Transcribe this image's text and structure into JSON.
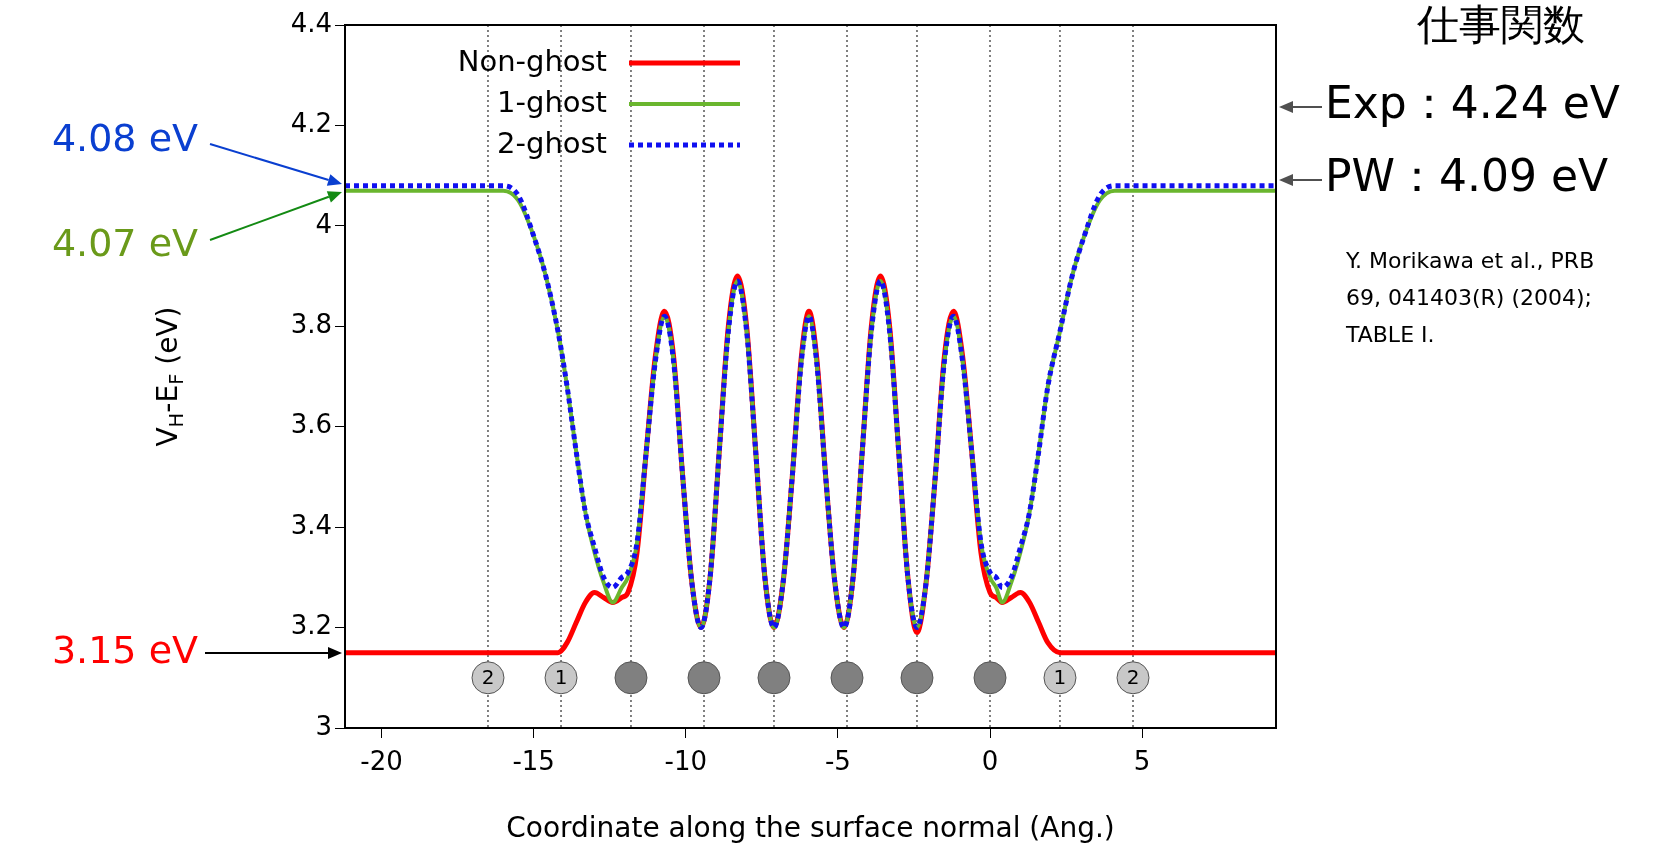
{
  "chart_data": {
    "type": "line",
    "title": "仕事関数",
    "xlabel": "Coordinate along the surface normal (Ang.)",
    "ylabel": "V$_{H}$-E$_{F}$ (eV)",
    "xlim": [
      -21.2,
      9.4
    ],
    "ylim": [
      3,
      4.4
    ],
    "xticks": [
      -20,
      -15,
      -10,
      -5,
      0,
      5
    ],
    "yticks": [
      3,
      3.2,
      3.4,
      3.6,
      3.8,
      4,
      4.2,
      4.4
    ],
    "legend": "top left",
    "marker": "none",
    "x": [
      -21.2,
      -16,
      -15.5,
      -15,
      -14.6,
      -14.2,
      -13.9,
      -13.6,
      -13.3,
      -13.0,
      -12.7,
      -12.4,
      -12.1,
      -11.9,
      -11.6,
      -11.3,
      -11.0,
      -10.7,
      -10.4,
      -10.1,
      -9.8,
      -9.5,
      -9.2,
      -8.9,
      -8.6,
      -8.3,
      -8.0,
      -7.7,
      -7.4,
      -7.1,
      -6.8,
      -6.5,
      -6.2,
      -5.95,
      -5.7,
      -5.4,
      -5.1,
      -4.8,
      -4.5,
      -4.2,
      -3.9,
      -3.6,
      -3.3,
      -3.0,
      -2.7,
      -2.4,
      -2.1,
      -1.8,
      -1.5,
      -1.2,
      -0.9,
      -0.6,
      -0.3,
      0,
      0.2,
      0.4,
      0.7,
      1.0,
      1.3,
      1.6,
      1.9,
      2.3,
      2.7,
      3.1,
      3.6,
      4.1,
      9.4
    ],
    "series": [
      {
        "name": "Non-ghost",
        "type": "line",
        "color": "#ff0000",
        "line_style": "solid",
        "values": [
          3.15,
          3.15,
          3.15,
          3.15,
          3.15,
          3.15,
          3.17,
          3.21,
          3.25,
          3.27,
          3.26,
          3.25,
          3.26,
          3.27,
          3.35,
          3.55,
          3.74,
          3.83,
          3.74,
          3.5,
          3.29,
          3.2,
          3.3,
          3.55,
          3.8,
          3.9,
          3.8,
          3.55,
          3.3,
          3.2,
          3.29,
          3.5,
          3.74,
          3.83,
          3.74,
          3.5,
          3.29,
          3.2,
          3.3,
          3.55,
          3.8,
          3.9,
          3.8,
          3.55,
          3.3,
          3.19,
          3.29,
          3.5,
          3.74,
          3.83,
          3.74,
          3.55,
          3.35,
          3.27,
          3.26,
          3.25,
          3.26,
          3.27,
          3.25,
          3.21,
          3.17,
          3.15,
          3.15,
          3.15,
          3.15,
          3.15,
          3.15
        ]
      },
      {
        "name": "1-ghost",
        "type": "line",
        "color": "#6ab62e",
        "line_style": "solid",
        "values": [
          4.07,
          4.07,
          4.05,
          3.98,
          3.9,
          3.79,
          3.68,
          3.55,
          3.43,
          3.35,
          3.29,
          3.25,
          3.28,
          3.3,
          3.37,
          3.55,
          3.73,
          3.82,
          3.73,
          3.5,
          3.29,
          3.2,
          3.3,
          3.55,
          3.79,
          3.89,
          3.79,
          3.55,
          3.3,
          3.2,
          3.29,
          3.5,
          3.73,
          3.82,
          3.73,
          3.5,
          3.29,
          3.2,
          3.3,
          3.55,
          3.79,
          3.89,
          3.79,
          3.55,
          3.3,
          3.2,
          3.29,
          3.5,
          3.73,
          3.82,
          3.73,
          3.55,
          3.37,
          3.3,
          3.28,
          3.25,
          3.29,
          3.35,
          3.43,
          3.55,
          3.68,
          3.79,
          3.9,
          3.98,
          4.05,
          4.07,
          4.07
        ]
      },
      {
        "name": "2-ghost",
        "type": "line",
        "color": "#1010f0",
        "line_style": "dotted",
        "values": [
          4.08,
          4.08,
          4.06,
          3.98,
          3.9,
          3.79,
          3.68,
          3.55,
          3.43,
          3.36,
          3.3,
          3.28,
          3.3,
          3.31,
          3.37,
          3.55,
          3.73,
          3.82,
          3.73,
          3.5,
          3.29,
          3.2,
          3.3,
          3.55,
          3.79,
          3.89,
          3.79,
          3.55,
          3.3,
          3.2,
          3.29,
          3.5,
          3.73,
          3.82,
          3.73,
          3.5,
          3.29,
          3.2,
          3.3,
          3.55,
          3.79,
          3.89,
          3.79,
          3.55,
          3.3,
          3.2,
          3.29,
          3.5,
          3.73,
          3.82,
          3.73,
          3.55,
          3.37,
          3.31,
          3.3,
          3.28,
          3.3,
          3.36,
          3.43,
          3.55,
          3.68,
          3.79,
          3.9,
          3.98,
          4.06,
          4.08,
          4.08
        ]
      },
      {
        "type": "scatter",
        "marker": "circle",
        "x": [
          -16.5,
          -14.1,
          -11.8,
          -9.4,
          -7.1,
          -4.7,
          -2.4,
          0,
          2.3,
          4.7
        ],
        "values": [
          3.1,
          3.1,
          3.1,
          3.1,
          3.1,
          3.1,
          3.1,
          3.1,
          3.1,
          3.1
        ],
        "colors": [
          "#c8c8c8",
          "#c8c8c8",
          "#808080",
          "#808080",
          "#808080",
          "#808080",
          "#808080",
          "#808080",
          "#c8c8c8",
          "#c8c8c8"
        ]
      }
    ],
    "ref_lines": [
      {
        "axis": "x",
        "value": -16.5,
        "line_style": "dotted"
      },
      {
        "axis": "x",
        "value": -14.1,
        "line_style": "dotted"
      },
      {
        "axis": "x",
        "value": -11.8,
        "line_style": "dotted"
      },
      {
        "axis": "x",
        "value": -9.4,
        "line_style": "dotted"
      },
      {
        "axis": "x",
        "value": -7.1,
        "line_style": "dotted"
      },
      {
        "axis": "x",
        "value": -4.7,
        "line_style": "dotted"
      },
      {
        "axis": "x",
        "value": -2.4,
        "line_style": "dotted"
      },
      {
        "axis": "x",
        "value": 0,
        "line_style": "dotted"
      },
      {
        "axis": "x",
        "value": 2.3,
        "line_style": "dotted"
      },
      {
        "axis": "x",
        "value": 4.7,
        "line_style": "dotted"
      }
    ],
    "annotations": [
      "4.08 eV",
      "4.07 eV",
      "3.15 eV",
      "Exp：4.24 eV",
      "PW：4.09 eV",
      {
        "text": "2",
        "x": -16.5,
        "y": 3.1
      },
      {
        "text": "1",
        "x": -14.1,
        "y": 3.1
      },
      {
        "text": "1",
        "x": 2.3,
        "y": 3.1
      },
      {
        "text": "2",
        "x": 4.7,
        "y": 3.1
      },
      "Y. Morikawa et al., PRB 69, 041403(R) (2004); TABLE I."
    ]
  }
}
